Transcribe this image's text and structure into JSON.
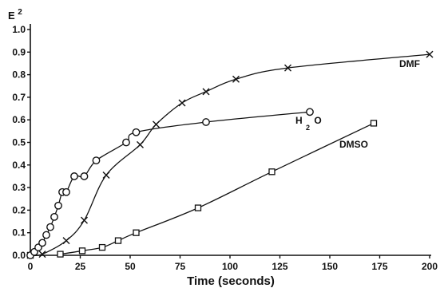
{
  "chart_data": {
    "type": "scatter",
    "xlabel": "Time (seconds)",
    "ylabel": "E",
    "ylabel_superscript": "2",
    "xlim": [
      0,
      200
    ],
    "ylim": [
      0,
      1.0
    ],
    "x_ticks": [
      "0",
      "25",
      "50",
      "75",
      "100",
      "125",
      "150",
      "175",
      "200"
    ],
    "y_ticks": [
      "0.0",
      "0.1",
      "0.2",
      "0.3",
      "0.4",
      "0.5",
      "0.6",
      "0.7",
      "0.8",
      "0.9",
      "1.0"
    ],
    "grid": false,
    "series": [
      {
        "name": "DMF",
        "marker": "x",
        "x": [
          0,
          6,
          18,
          27,
          38,
          55,
          63,
          76,
          88,
          103,
          129,
          200
        ],
        "y": [
          0.0,
          0.005,
          0.065,
          0.155,
          0.355,
          0.49,
          0.58,
          0.675,
          0.725,
          0.78,
          0.83,
          0.89
        ]
      },
      {
        "name": "H",
        "name_subscript": "2",
        "name_suffix": "O",
        "marker": "circle",
        "x": [
          0,
          2,
          4,
          6,
          8,
          10,
          12,
          14,
          16,
          18,
          22,
          27,
          33,
          48,
          53,
          88,
          140
        ],
        "y": [
          0.0,
          0.015,
          0.035,
          0.055,
          0.09,
          0.125,
          0.17,
          0.22,
          0.28,
          0.28,
          0.35,
          0.35,
          0.42,
          0.5,
          0.545,
          0.59,
          0.635
        ]
      },
      {
        "name": "DMSO",
        "marker": "square",
        "x": [
          15,
          26,
          36,
          44,
          53,
          84,
          121,
          172
        ],
        "y": [
          0.005,
          0.02,
          0.035,
          0.065,
          0.1,
          0.21,
          0.37,
          0.585
        ]
      }
    ]
  }
}
